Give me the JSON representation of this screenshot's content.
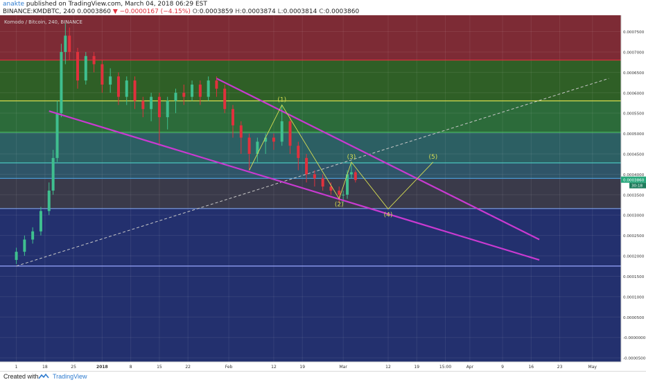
{
  "header": {
    "author": "anakte",
    "published": "published on TradingView.com, March 04, 2018 06:29 EST",
    "symbol": "BINANCE:KMDBTC, 240",
    "price": "0.0003860",
    "change": "−0.0000167 (−4.15%)",
    "o_label": "O:",
    "o_value": "0.0003859",
    "h_label": "H:",
    "h_value": "0.0003874",
    "l_label": "L:",
    "l_value": "0.0003814",
    "c_label": "C:",
    "c_value": "0.0003860"
  },
  "legend_title": "Komodo / Bitcoin, 240, BINANCE",
  "footer": {
    "created_label": "Created with",
    "brand": "TradingView"
  },
  "colors": {
    "wedge": "#c93ad1",
    "wave": "#d7de52",
    "down": "#e0313d",
    "up": "#3fbf8f",
    "last_price_tag": "#28a87c"
  },
  "chart_data": {
    "type": "candlestick",
    "title": "Komodo / Bitcoin, 240, BINANCE",
    "ylim": [
      -6e-05,
      0.00079
    ],
    "y_ticks": [
      "0.0007500",
      "0.0007000",
      "0.0006500",
      "0.0006000",
      "0.0005500",
      "0.0005000",
      "0.0004500",
      "0.0004000",
      "0.0003500",
      "0.0003000",
      "0.0002500",
      "0.0002000",
      "0.0001500",
      "0.0001000",
      "0.0000500",
      "-0.0000000",
      "-0.0000500"
    ],
    "y_tick_values": [
      0.00075,
      0.0007,
      0.00065,
      0.0006,
      0.00055,
      0.0005,
      0.00045,
      0.0004,
      0.00035,
      0.0003,
      0.00025,
      0.0002,
      0.00015,
      0.0001,
      5e-05,
      0,
      -5e-05
    ],
    "x_ticks": [
      "1",
      "18",
      "25",
      "2018",
      "8",
      "15",
      "22",
      "Feb",
      "12",
      "19",
      "Mar",
      "12",
      "19",
      "15:00",
      "Apr",
      "9",
      "16",
      "23",
      "May"
    ],
    "x_tick_dates": [
      "2017-12-11",
      "2017-12-18",
      "2017-12-25",
      "2018-01-01",
      "2018-01-08",
      "2018-01-15",
      "2018-01-22",
      "2018-02-01",
      "2018-02-12",
      "2018-02-19",
      "2018-03-01",
      "2018-03-12",
      "2018-03-19",
      "2018-03-26",
      "2018-04-01",
      "2018-04-09",
      "2018-04-16",
      "2018-04-23",
      "2018-05-01"
    ],
    "last_price_label": "0.0003860",
    "countdown_label": "30:18",
    "last_price": 0.000386,
    "series": [
      {
        "dates": [
          "2017-12-11",
          "2017-12-13",
          "2017-12-15",
          "2017-12-17",
          "2017-12-19",
          "2017-12-20",
          "2017-12-21",
          "2017-12-22",
          "2017-12-23",
          "2017-12-24",
          "2017-12-26",
          "2017-12-28",
          "2017-12-30",
          "2018-01-01",
          "2018-01-03",
          "2018-01-05",
          "2018-01-07",
          "2018-01-09",
          "2018-01-11",
          "2018-01-13",
          "2018-01-15",
          "2018-01-17",
          "2018-01-19",
          "2018-01-21",
          "2018-01-23",
          "2018-01-25",
          "2018-01-27",
          "2018-01-29",
          "2018-01-31",
          "2018-02-02",
          "2018-02-04",
          "2018-02-06",
          "2018-02-08",
          "2018-02-10",
          "2018-02-12",
          "2018-02-14",
          "2018-02-16",
          "2018-02-18",
          "2018-02-20",
          "2018-02-22",
          "2018-02-24",
          "2018-02-26",
          "2018-02-28",
          "2018-03-01",
          "2018-03-02",
          "2018-03-03",
          "2018-03-04"
        ],
        "open": [
          0.00019,
          0.00021,
          0.00024,
          0.00026,
          0.00031,
          0.00036,
          0.00044,
          0.00055,
          0.0007,
          0.00074,
          0.0007,
          0.00063,
          0.00069,
          0.00067,
          0.00062,
          0.00064,
          0.00059,
          0.00063,
          0.00058,
          0.00056,
          0.00059,
          0.00054,
          0.00058,
          0.0006,
          0.00059,
          0.00062,
          0.00059,
          0.00063,
          0.00061,
          0.00056,
          0.00052,
          0.00049,
          0.00045,
          0.00048,
          0.00049,
          0.00048,
          0.00053,
          0.00047,
          0.00044,
          0.0004,
          0.00039,
          0.00037,
          0.00036,
          0.00035,
          0.00035,
          0.0004,
          0.000405
        ],
        "close": [
          0.00021,
          0.00024,
          0.00026,
          0.00031,
          0.00036,
          0.00044,
          0.00055,
          0.0007,
          0.00074,
          0.0007,
          0.00063,
          0.00069,
          0.00067,
          0.00062,
          0.00064,
          0.00059,
          0.00063,
          0.00058,
          0.00056,
          0.00059,
          0.00054,
          0.00058,
          0.0006,
          0.00059,
          0.00062,
          0.00059,
          0.00063,
          0.00061,
          0.00056,
          0.00052,
          0.00049,
          0.00045,
          0.00048,
          0.00049,
          0.00048,
          0.00053,
          0.00047,
          0.00044,
          0.0004,
          0.00039,
          0.00037,
          0.00036,
          0.00035,
          0.00035,
          0.0004,
          0.000405,
          0.000386
        ],
        "high": [
          0.00022,
          0.00025,
          0.00027,
          0.00032,
          0.00038,
          0.00046,
          0.00058,
          0.00072,
          0.00077,
          0.00076,
          0.00071,
          0.0007,
          0.0007,
          0.00068,
          0.00066,
          0.00065,
          0.00064,
          0.00064,
          0.00059,
          0.0006,
          0.0006,
          0.00059,
          0.00061,
          0.00062,
          0.00063,
          0.00063,
          0.00064,
          0.00064,
          0.00062,
          0.00057,
          0.00053,
          0.0005,
          0.00049,
          0.0005,
          0.0005,
          0.00057,
          0.00054,
          0.00048,
          0.00045,
          0.00041,
          0.0004,
          0.00038,
          0.00037,
          0.00036,
          0.00041,
          0.00043,
          0.00041
        ],
        "low": [
          0.00018,
          0.0002,
          0.00023,
          0.00025,
          0.0003,
          0.00035,
          0.00043,
          0.00054,
          0.00067,
          0.00068,
          0.00061,
          0.00062,
          0.00065,
          0.0006,
          0.0006,
          0.00057,
          0.00057,
          0.00056,
          0.00054,
          0.00053,
          0.00047,
          0.00051,
          0.00055,
          0.00057,
          0.00058,
          0.00057,
          0.00058,
          0.00059,
          0.00055,
          0.00049,
          0.00045,
          0.00041,
          0.00043,
          0.00045,
          0.00046,
          0.00047,
          0.00045,
          0.00041,
          0.00038,
          0.00037,
          0.00036,
          0.00035,
          0.00033,
          0.00033,
          0.00034,
          0.00039,
          0.00038
        ]
      }
    ],
    "fib_levels": [
      0.00068,
      0.00058,
      0.000503,
      0.000428,
      0.00039,
      0.000316,
      0.000175
    ],
    "fib_zone_colors": [
      "#7d2b35",
      "#2f5f26",
      "#2c6b3a",
      "#2c5f63",
      "#2f5468",
      "#3a3a4a",
      "#23306e"
    ],
    "fib_line_colors": [
      "#e0313d",
      "#d7de52",
      "#4cc25e",
      "#4dd0c8",
      "#4da3e0",
      "#7fa0e6",
      "#9aa7ff"
    ],
    "trendlines": [
      {
        "name": "wedge-upper",
        "from": [
          "2018-01-29",
          0.000635
        ],
        "to": [
          "2018-04-18",
          0.00024
        ]
      },
      {
        "name": "wedge-lower",
        "from": [
          "2017-12-19",
          0.000555
        ],
        "to": [
          "2018-04-18",
          0.00019
        ]
      },
      {
        "name": "dashed-support",
        "from": [
          "2017-12-11",
          0.000175
        ],
        "to": [
          "2018-05-05",
          0.000635
        ]
      }
    ],
    "elliott_waves": [
      {
        "label": "(1)",
        "date": "2018-02-14",
        "value": 0.00057
      },
      {
        "label": "(2)",
        "date": "2018-02-28",
        "value": 0.00034
      },
      {
        "label": "(3)",
        "date": "2018-03-03",
        "value": 0.00043
      },
      {
        "label": "(4)",
        "date": "2018-03-12",
        "value": 0.000315
      },
      {
        "label": "(5)",
        "date": "2018-03-23",
        "value": 0.00043
      }
    ],
    "wave_path": [
      [
        "2018-02-06",
        0.00041
      ],
      [
        "2018-02-14",
        0.00057
      ],
      [
        "2018-02-28",
        0.00034
      ],
      [
        "2018-03-03",
        0.00043
      ],
      [
        "2018-03-12",
        0.000315
      ],
      [
        "2018-03-23",
        0.00043
      ]
    ]
  }
}
